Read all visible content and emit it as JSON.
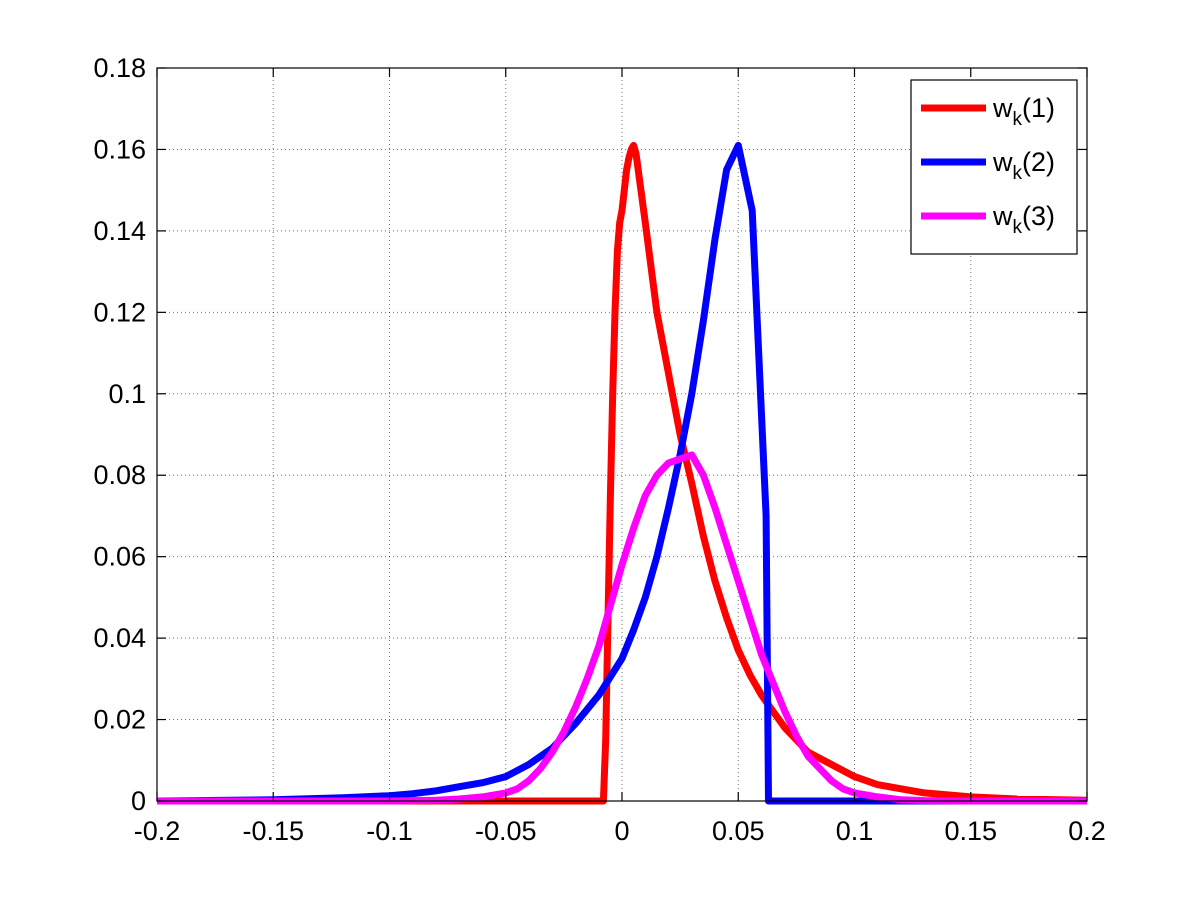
{
  "chart_data": {
    "type": "line",
    "title": "",
    "xlabel": "",
    "ylabel": "",
    "xlim": [
      -0.2,
      0.2
    ],
    "ylim": [
      0,
      0.18
    ],
    "xticks": [
      -0.2,
      -0.15,
      -0.1,
      -0.05,
      0,
      0.05,
      0.1,
      0.15,
      0.2
    ],
    "xtick_labels": [
      "-0.2",
      "-0.15",
      "-0.1",
      "-0.05",
      "0",
      "0.05",
      "0.1",
      "0.15",
      "0.2"
    ],
    "yticks": [
      0,
      0.02,
      0.04,
      0.06,
      0.08,
      0.1,
      0.12,
      0.14,
      0.16,
      0.18
    ],
    "ytick_labels": [
      "0",
      "0.02",
      "0.04",
      "0.06",
      "0.08",
      "0.1",
      "0.12",
      "0.14",
      "0.16",
      "0.18"
    ],
    "grid": true,
    "legend_position": "top-right",
    "series": [
      {
        "name": "w_k(1)",
        "name_base": "w",
        "name_sub": "k",
        "name_suffix": "(1)",
        "color": "#ff0000",
        "x": [
          -0.2,
          -0.1,
          -0.008,
          -0.007,
          -0.006,
          -0.005,
          -0.004,
          -0.003,
          -0.002,
          -0.001,
          0.0,
          0.001,
          0.002,
          0.003,
          0.004,
          0.005,
          0.006,
          0.01,
          0.015,
          0.02,
          0.025,
          0.03,
          0.035,
          0.04,
          0.045,
          0.05,
          0.055,
          0.06,
          0.065,
          0.07,
          0.075,
          0.08,
          0.09,
          0.1,
          0.11,
          0.12,
          0.13,
          0.14,
          0.15,
          0.17,
          0.2
        ],
        "y": [
          0.0,
          0.0,
          0.0,
          0.015,
          0.045,
          0.075,
          0.1,
          0.12,
          0.135,
          0.142,
          0.145,
          0.15,
          0.155,
          0.158,
          0.16,
          0.161,
          0.159,
          0.142,
          0.12,
          0.105,
          0.09,
          0.078,
          0.065,
          0.054,
          0.045,
          0.037,
          0.031,
          0.026,
          0.022,
          0.018,
          0.015,
          0.012,
          0.009,
          0.006,
          0.004,
          0.003,
          0.002,
          0.0015,
          0.001,
          0.0005,
          0.0002
        ]
      },
      {
        "name": "w_k(2)",
        "name_base": "w",
        "name_sub": "k",
        "name_suffix": "(2)",
        "color": "#0000ff",
        "x": [
          -0.2,
          -0.15,
          -0.12,
          -0.1,
          -0.09,
          -0.08,
          -0.07,
          -0.06,
          -0.05,
          -0.04,
          -0.03,
          -0.02,
          -0.01,
          0.0,
          0.005,
          0.01,
          0.015,
          0.02,
          0.025,
          0.03,
          0.035,
          0.04,
          0.045,
          0.05,
          0.056,
          0.062,
          0.063,
          0.2
        ],
        "y": [
          0.0,
          0.0003,
          0.0008,
          0.0013,
          0.0018,
          0.0025,
          0.0035,
          0.0045,
          0.006,
          0.009,
          0.013,
          0.019,
          0.026,
          0.035,
          0.042,
          0.05,
          0.06,
          0.072,
          0.085,
          0.1,
          0.118,
          0.138,
          0.155,
          0.161,
          0.145,
          0.07,
          0.0,
          0.0
        ]
      },
      {
        "name": "w_k(3)",
        "name_base": "w",
        "name_sub": "k",
        "name_suffix": "(3)",
        "color": "#ff00ff",
        "x": [
          -0.2,
          -0.1,
          -0.08,
          -0.07,
          -0.06,
          -0.05,
          -0.045,
          -0.04,
          -0.035,
          -0.03,
          -0.025,
          -0.02,
          -0.015,
          -0.01,
          -0.005,
          0.0,
          0.005,
          0.01,
          0.015,
          0.02,
          0.025,
          0.03,
          0.035,
          0.04,
          0.045,
          0.05,
          0.055,
          0.06,
          0.065,
          0.07,
          0.075,
          0.08,
          0.085,
          0.09,
          0.095,
          0.1,
          0.11,
          0.12,
          0.13,
          0.15,
          0.2
        ],
        "y": [
          0.0,
          0.0,
          0.0002,
          0.0005,
          0.001,
          0.002,
          0.003,
          0.005,
          0.008,
          0.012,
          0.017,
          0.023,
          0.03,
          0.038,
          0.048,
          0.058,
          0.067,
          0.075,
          0.08,
          0.083,
          0.084,
          0.085,
          0.08,
          0.072,
          0.063,
          0.054,
          0.045,
          0.036,
          0.029,
          0.022,
          0.016,
          0.011,
          0.008,
          0.005,
          0.003,
          0.002,
          0.001,
          0.0003,
          0.0001,
          0.0,
          0.0
        ]
      }
    ]
  }
}
